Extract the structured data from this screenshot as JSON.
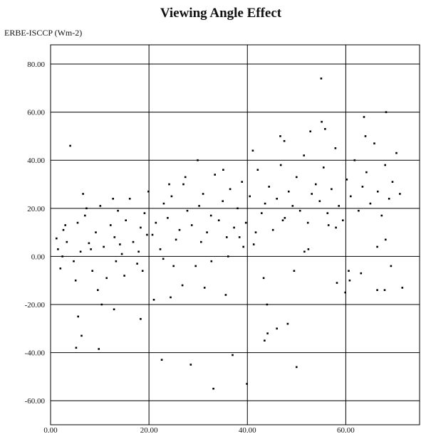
{
  "chart_data": {
    "type": "scatter",
    "title": "Viewing Angle Effect",
    "ylabel": "ERBE-ISCCP (Wm-2)",
    "xlabel": "",
    "xlim": [
      0,
      75
    ],
    "ylim": [
      -70,
      88
    ],
    "xticks": [
      "0.00",
      "20.00",
      "40.00",
      "60.00"
    ],
    "yticks": [
      "80.00",
      "60.00",
      "40.00",
      "20.00",
      "0.00",
      "-20.00",
      "-40.00",
      "-60.00"
    ],
    "grid": true,
    "marker_color": "#000000",
    "points_sampled": true,
    "x": [
      1.2,
      1.5,
      2.0,
      2.6,
      3.3,
      4.7,
      5.5,
      6.1,
      7.0,
      7.8,
      8.5,
      9.2,
      10.1,
      10.8,
      11.4,
      12.2,
      13.0,
      13.7,
      14.5,
      15.3,
      16.1,
      16.8,
      17.6,
      18.3,
      19.1,
      19.9,
      20.7,
      21.4,
      22.3,
      23.0,
      23.8,
      24.6,
      25.5,
      26.2,
      27.0,
      27.8,
      28.7,
      29.5,
      30.2,
      31.0,
      31.8,
      32.6,
      33.4,
      34.2,
      35.0,
      35.8,
      36.5,
      37.3,
      38.0,
      38.9,
      39.7,
      40.5,
      41.3,
      42.1,
      42.9,
      43.6,
      44.4,
      45.2,
      46.0,
      46.8,
      47.6,
      48.4,
      49.2,
      50.0,
      50.7,
      51.5,
      52.3,
      53.1,
      53.9,
      54.7,
      55.5,
      56.3,
      57.1,
      57.9,
      58.6,
      59.4,
      60.2,
      61.0,
      61.8,
      62.6,
      63.4,
      64.2,
      65.0,
      65.8,
      66.5,
      67.3,
      68.0,
      68.8,
      69.5,
      70.3,
      71.0,
      2.4,
      5.1,
      7.3,
      9.6,
      12.7,
      15.0,
      17.9,
      21.0,
      24.1,
      26.8,
      29.9,
      32.7,
      35.6,
      38.4,
      41.1,
      44.0,
      46.7,
      49.5,
      52.4,
      55.1,
      58.0,
      60.8,
      63.7,
      66.4,
      69.2,
      3.0,
      6.6,
      10.4,
      14.1,
      18.7,
      22.9,
      27.4,
      31.3,
      35.1,
      39.2,
      43.3,
      47.5,
      51.6,
      55.8,
      59.9,
      64.0,
      68.1,
      4.0,
      8.2,
      13.3,
      19.6,
      25.0,
      30.6,
      36.1,
      41.7,
      47.2,
      52.8,
      58.2,
      63.1,
      67.9,
      5.2,
      5.6,
      6.3,
      9.8,
      12.9,
      18.3,
      22.6,
      24.4,
      28.5,
      33.1,
      37.0,
      39.9,
      43.5,
      44.1,
      46.0,
      48.2,
      50.0,
      55.0,
      56.5,
      60.6,
      66.4,
      68.2,
      71.5
    ],
    "y": [
      7.5,
      3.0,
      -5.0,
      11.0,
      6.0,
      -2.0,
      14.0,
      2.0,
      17.0,
      5.5,
      -6.0,
      10.0,
      21.0,
      4.0,
      -9.0,
      13.0,
      8.0,
      19.0,
      1.0,
      15.0,
      24.0,
      6.0,
      -3.0,
      12.0,
      18.0,
      27.0,
      9.0,
      14.0,
      3.0,
      22.0,
      16.0,
      25.0,
      7.0,
      11.0,
      30.0,
      19.0,
      13.0,
      -4.0,
      21.0,
      26.0,
      10.0,
      17.0,
      34.0,
      15.0,
      23.0,
      8.0,
      28.0,
      12.0,
      20.0,
      31.0,
      14.0,
      25.0,
      5.0,
      36.0,
      18.0,
      22.0,
      29.0,
      11.0,
      24.0,
      38.0,
      16.0,
      27.0,
      21.0,
      33.0,
      19.0,
      42.0,
      14.0,
      26.0,
      30.0,
      23.0,
      37.0,
      18.0,
      28.0,
      45.0,
      21.0,
      15.0,
      32.0,
      25.0,
      40.0,
      19.0,
      29.0,
      35.0,
      22.0,
      47.0,
      27.0,
      17.0,
      38.0,
      24.0,
      31.0,
      43.0,
      26.0,
      0.0,
      -10.0,
      20.0,
      -14.0,
      24.0,
      -8.0,
      2.0,
      -18.0,
      30.0,
      -12.0,
      40.0,
      -2.0,
      -16.0,
      8.0,
      44.0,
      -20.0,
      50.0,
      -6.0,
      3.0,
      56.0,
      12.0,
      -10.0,
      58.0,
      4.0,
      -4.0,
      13.0,
      26.0,
      -20.0,
      5.0,
      -6.0,
      -1.0,
      33.0,
      -13.0,
      36.0,
      4.0,
      -9.0,
      48.0,
      2.0,
      53.0,
      -15.0,
      50.0,
      7.0,
      46.0,
      3.0,
      -2.0,
      9.0,
      -4.0,
      6.0,
      0.0,
      10.0,
      15.0,
      52.0,
      -11.0,
      -7.0,
      -14.0,
      -38.0,
      -25.0,
      -33.0,
      -38.5,
      -22.0,
      -26.0,
      -43.0,
      -17.0,
      -45.0,
      -55.0,
      -41.0,
      -53.0,
      -35.0,
      -32.0,
      -30.0,
      -28.0,
      -46.0,
      74.0,
      13.0,
      -6.0,
      -14.0,
      60.0,
      -13.0
    ]
  }
}
